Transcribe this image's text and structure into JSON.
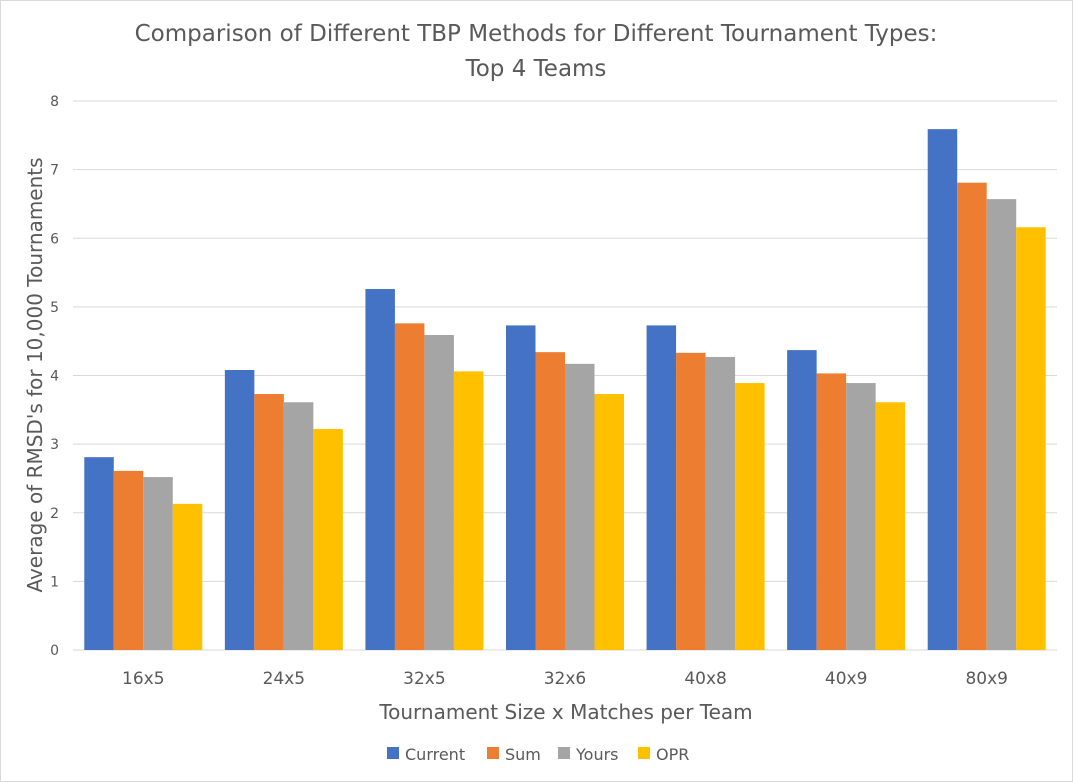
{
  "chart_data": {
    "type": "bar",
    "title": "Comparison of Different TBP Methods for Different Tournament Types:",
    "subtitle": "Top 4 Teams",
    "xlabel": "Tournament Size x Matches per Team",
    "ylabel": "Average of RMSD's for 10,000 Tournaments",
    "ylim": [
      0,
      8
    ],
    "yticks": [
      0,
      1,
      2,
      3,
      4,
      5,
      6,
      7,
      8
    ],
    "grid": true,
    "legend_position": "bottom",
    "categories": [
      "16x5",
      "24x5",
      "32x5",
      "32x6",
      "40x8",
      "40x9",
      "80x9"
    ],
    "series": [
      {
        "name": "Current",
        "color": "#4472C4",
        "values": [
          2.81,
          4.08,
          5.26,
          4.73,
          4.73,
          4.37,
          7.59
        ]
      },
      {
        "name": "Sum",
        "color": "#ED7D31",
        "values": [
          2.61,
          3.73,
          4.76,
          4.34,
          4.33,
          4.03,
          6.81
        ]
      },
      {
        "name": "Yours",
        "color": "#A5A5A5",
        "values": [
          2.52,
          3.61,
          4.59,
          4.17,
          4.27,
          3.89,
          6.57
        ]
      },
      {
        "name": "OPR",
        "color": "#FFC000",
        "values": [
          2.13,
          3.22,
          4.06,
          3.73,
          3.89,
          3.61,
          6.16
        ]
      }
    ]
  }
}
